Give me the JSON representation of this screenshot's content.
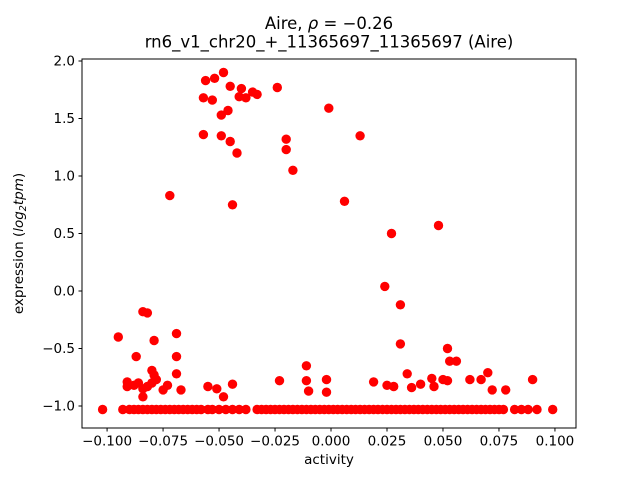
{
  "title": {
    "part1": "Aire, ",
    "rho": "ρ",
    "part2": " = −0.26",
    "subtitle": "rn6_v1_chr20_+_11365697_11365697 (Aire)"
  },
  "axes": {
    "xlabel": "activity",
    "ylabel_prefix": "expression (",
    "ylabel_log": "log",
    "ylabel_sub": "2",
    "ylabel_tpm": "tpm",
    "ylabel_suffix": ")"
  },
  "chart_data": {
    "type": "scatter",
    "title": "Aire, ρ = −0.26",
    "subtitle": "rn6_v1_chr20_+_11365697_11365697 (Aire)",
    "xlabel": "activity",
    "ylabel": "expression (log2 tpm)",
    "legend": "none",
    "grid": false,
    "marker": {
      "color": "#ff0000",
      "radius_px": 4.7
    },
    "xlim": [
      -0.1112,
      0.1094
    ],
    "ylim": [
      -1.1913,
      2.0174
    ],
    "xticks": [
      -0.1,
      -0.075,
      -0.05,
      -0.025,
      0.0,
      0.025,
      0.05,
      0.075,
      0.1
    ],
    "xtick_labels": [
      "−0.100",
      "−0.075",
      "−0.050",
      "−0.025",
      "0.000",
      "0.025",
      "0.050",
      "0.075",
      "0.100"
    ],
    "yticks": [
      2.0,
      1.5,
      1.0,
      0.5,
      0.0,
      -0.5,
      -1.0
    ],
    "ytick_labels": [
      "2.0",
      "1.5",
      "1.0",
      "0.5",
      "0.0",
      "−0.5",
      "−1.0"
    ],
    "points": [
      [
        -0.048,
        1.9
      ],
      [
        -0.052,
        1.85
      ],
      [
        -0.056,
        1.83
      ],
      [
        -0.045,
        1.78
      ],
      [
        -0.024,
        1.77
      ],
      [
        -0.04,
        1.76
      ],
      [
        -0.035,
        1.73
      ],
      [
        -0.033,
        1.71
      ],
      [
        -0.041,
        1.69
      ],
      [
        -0.057,
        1.68
      ],
      [
        -0.038,
        1.68
      ],
      [
        -0.053,
        1.66
      ],
      [
        -0.001,
        1.59
      ],
      [
        -0.046,
        1.57
      ],
      [
        -0.049,
        1.53
      ],
      [
        -0.057,
        1.36
      ],
      [
        -0.049,
        1.35
      ],
      [
        0.013,
        1.35
      ],
      [
        -0.02,
        1.32
      ],
      [
        -0.045,
        1.3
      ],
      [
        -0.02,
        1.23
      ],
      [
        -0.042,
        1.2
      ],
      [
        -0.017,
        1.05
      ],
      [
        -0.072,
        0.83
      ],
      [
        0.006,
        0.78
      ],
      [
        -0.044,
        0.75
      ],
      [
        0.048,
        0.57
      ],
      [
        0.027,
        0.5
      ],
      [
        0.024,
        0.04
      ],
      [
        0.031,
        -0.12
      ],
      [
        -0.084,
        -0.18
      ],
      [
        -0.082,
        -0.19
      ],
      [
        -0.095,
        -0.4
      ],
      [
        -0.069,
        -0.37
      ],
      [
        -0.079,
        -0.43
      ],
      [
        0.031,
        -0.46
      ],
      [
        0.052,
        -0.5
      ],
      [
        -0.087,
        -0.57
      ],
      [
        -0.069,
        -0.57
      ],
      [
        0.053,
        -0.61
      ],
      [
        0.056,
        -0.61
      ],
      [
        -0.011,
        -0.65
      ],
      [
        -0.08,
        -0.69
      ],
      [
        0.07,
        -0.71
      ],
      [
        -0.079,
        -0.73
      ],
      [
        -0.069,
        -0.72
      ],
      [
        0.034,
        -0.72
      ],
      [
        0.045,
        -0.76
      ],
      [
        -0.078,
        -0.77
      ],
      [
        0.05,
        -0.77
      ],
      [
        0.062,
        -0.77
      ],
      [
        0.067,
        -0.77
      ],
      [
        0.09,
        -0.77
      ],
      [
        -0.023,
        -0.78
      ],
      [
        -0.011,
        -0.78
      ],
      [
        -0.002,
        -0.77
      ],
      [
        0.052,
        -0.78
      ],
      [
        -0.091,
        -0.79
      ],
      [
        0.019,
        -0.79
      ],
      [
        -0.086,
        -0.8
      ],
      [
        -0.08,
        -0.8
      ],
      [
        0.04,
        -0.81
      ],
      [
        -0.044,
        -0.81
      ],
      [
        -0.088,
        -0.82
      ],
      [
        -0.073,
        -0.82
      ],
      [
        0.025,
        -0.82
      ],
      [
        -0.091,
        -0.83
      ],
      [
        -0.082,
        -0.83
      ],
      [
        -0.055,
        -0.83
      ],
      [
        0.028,
        -0.83
      ],
      [
        0.046,
        -0.83
      ],
      [
        -0.084,
        -0.85
      ],
      [
        -0.051,
        -0.85
      ],
      [
        0.036,
        -0.84
      ],
      [
        -0.075,
        -0.86
      ],
      [
        -0.067,
        -0.86
      ],
      [
        -0.01,
        -0.87
      ],
      [
        -0.002,
        -0.88
      ],
      [
        0.072,
        -0.86
      ],
      [
        0.078,
        -0.86
      ],
      [
        -0.084,
        -0.92
      ],
      [
        -0.048,
        -0.92
      ],
      [
        -0.102,
        -1.03
      ],
      [
        -0.093,
        -1.03
      ],
      [
        -0.09,
        -1.03
      ],
      [
        -0.088,
        -1.03
      ],
      [
        -0.086,
        -1.03
      ],
      [
        -0.084,
        -1.03
      ],
      [
        -0.082,
        -1.03
      ],
      [
        -0.08,
        -1.03
      ],
      [
        -0.078,
        -1.03
      ],
      [
        -0.076,
        -1.03
      ],
      [
        -0.074,
        -1.03
      ],
      [
        -0.072,
        -1.03
      ],
      [
        -0.07,
        -1.03
      ],
      [
        -0.068,
        -1.03
      ],
      [
        -0.066,
        -1.03
      ],
      [
        -0.064,
        -1.03
      ],
      [
        -0.062,
        -1.03
      ],
      [
        -0.06,
        -1.03
      ],
      [
        -0.058,
        -1.03
      ],
      [
        -0.055,
        -1.03
      ],
      [
        -0.053,
        -1.03
      ],
      [
        -0.05,
        -1.03
      ],
      [
        -0.047,
        -1.03
      ],
      [
        -0.044,
        -1.03
      ],
      [
        -0.041,
        -1.03
      ],
      [
        -0.038,
        -1.03
      ],
      [
        -0.033,
        -1.03
      ],
      [
        -0.031,
        -1.03
      ],
      [
        -0.029,
        -1.03
      ],
      [
        -0.027,
        -1.03
      ],
      [
        -0.025,
        -1.03
      ],
      [
        -0.023,
        -1.03
      ],
      [
        -0.021,
        -1.03
      ],
      [
        -0.019,
        -1.03
      ],
      [
        -0.017,
        -1.03
      ],
      [
        -0.015,
        -1.03
      ],
      [
        -0.013,
        -1.03
      ],
      [
        -0.011,
        -1.03
      ],
      [
        -0.009,
        -1.03
      ],
      [
        -0.007,
        -1.03
      ],
      [
        -0.005,
        -1.03
      ],
      [
        -0.003,
        -1.03
      ],
      [
        -0.001,
        -1.03
      ],
      [
        0.001,
        -1.03
      ],
      [
        0.003,
        -1.03
      ],
      [
        0.005,
        -1.03
      ],
      [
        0.007,
        -1.03
      ],
      [
        0.009,
        -1.03
      ],
      [
        0.011,
        -1.03
      ],
      [
        0.013,
        -1.03
      ],
      [
        0.015,
        -1.03
      ],
      [
        0.017,
        -1.03
      ],
      [
        0.019,
        -1.03
      ],
      [
        0.021,
        -1.03
      ],
      [
        0.023,
        -1.03
      ],
      [
        0.025,
        -1.03
      ],
      [
        0.027,
        -1.03
      ],
      [
        0.029,
        -1.03
      ],
      [
        0.031,
        -1.03
      ],
      [
        0.033,
        -1.03
      ],
      [
        0.035,
        -1.03
      ],
      [
        0.037,
        -1.03
      ],
      [
        0.039,
        -1.03
      ],
      [
        0.041,
        -1.03
      ],
      [
        0.043,
        -1.03
      ],
      [
        0.045,
        -1.03
      ],
      [
        0.047,
        -1.03
      ],
      [
        0.049,
        -1.03
      ],
      [
        0.051,
        -1.03
      ],
      [
        0.053,
        -1.03
      ],
      [
        0.055,
        -1.03
      ],
      [
        0.057,
        -1.03
      ],
      [
        0.059,
        -1.03
      ],
      [
        0.061,
        -1.03
      ],
      [
        0.063,
        -1.03
      ],
      [
        0.065,
        -1.03
      ],
      [
        0.067,
        -1.03
      ],
      [
        0.069,
        -1.03
      ],
      [
        0.071,
        -1.03
      ],
      [
        0.073,
        -1.03
      ],
      [
        0.075,
        -1.03
      ],
      [
        0.077,
        -1.03
      ],
      [
        0.082,
        -1.03
      ],
      [
        0.085,
        -1.03
      ],
      [
        0.088,
        -1.03
      ],
      [
        0.092,
        -1.03
      ],
      [
        0.099,
        -1.03
      ]
    ]
  }
}
